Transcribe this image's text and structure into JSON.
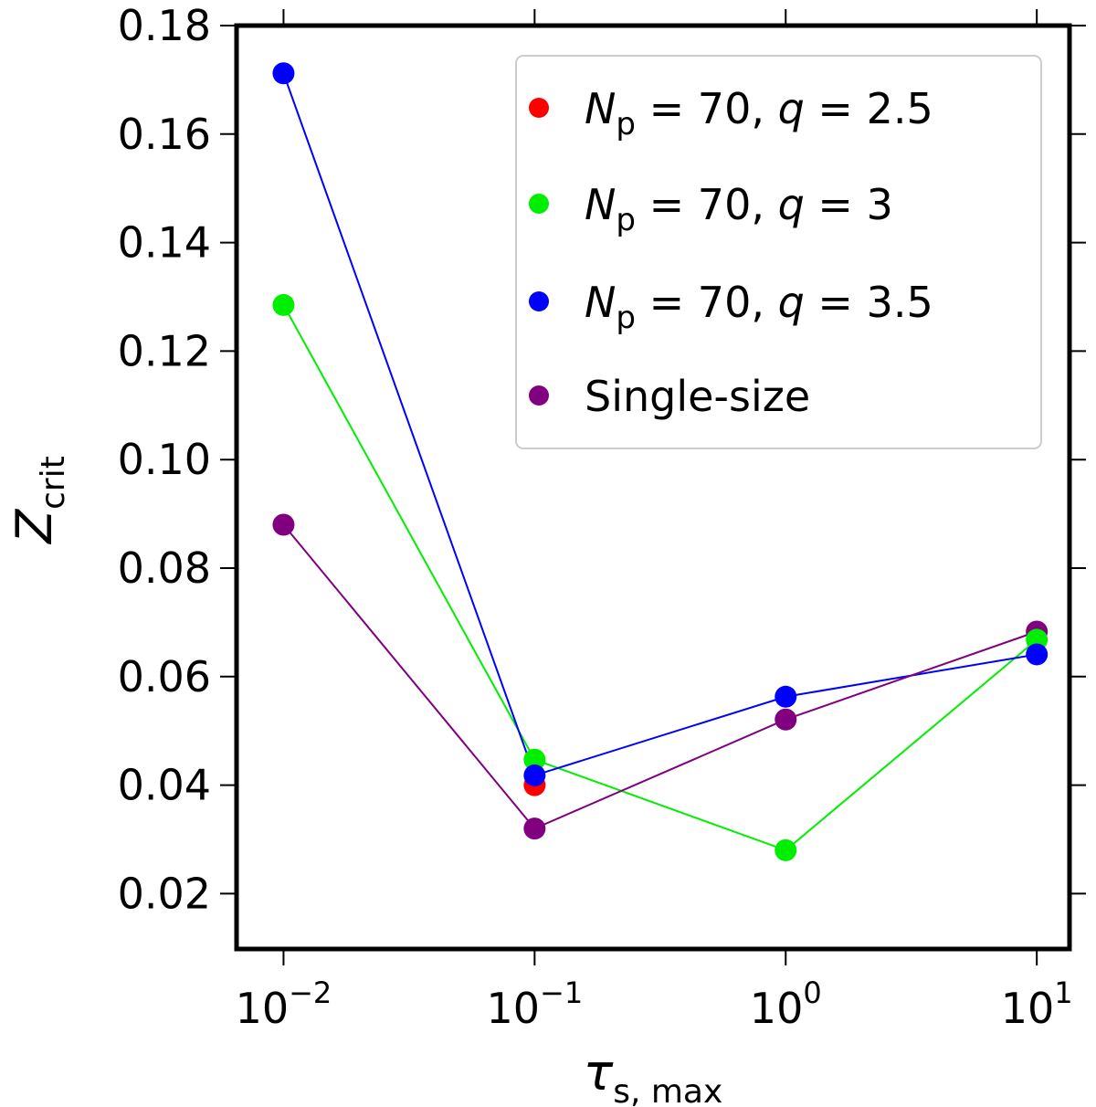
{
  "chart_data": {
    "type": "line",
    "title": "",
    "xscale": "log",
    "x": [
      0.01,
      0.1,
      1,
      10
    ],
    "xlim": [
      0.0065,
      13.5
    ],
    "ylim": [
      0.0098,
      0.18
    ],
    "xticks": [
      {
        "value": 0.01,
        "base": "10",
        "exp": "−2"
      },
      {
        "value": 0.1,
        "base": "10",
        "exp": "−1"
      },
      {
        "value": 1,
        "base": "10",
        "exp": "0"
      },
      {
        "value": 10,
        "base": "10",
        "exp": "1"
      }
    ],
    "yticks": [
      0.02,
      0.04,
      0.06,
      0.08,
      0.1,
      0.12,
      0.14,
      0.16,
      0.18
    ],
    "ytick_labels": [
      "0.02",
      "0.04",
      "0.06",
      "0.08",
      "0.10",
      "0.12",
      "0.14",
      "0.16",
      "0.18"
    ],
    "xlabel": {
      "symbol": "τ",
      "subscript": "s, max"
    },
    "ylabel": {
      "symbol": "Z",
      "subscript": "crit"
    },
    "legend_position": "upper-right",
    "series": [
      {
        "name": "N_p = 70, q = 2.5",
        "label_var": "N",
        "label_sub": "p",
        "label_rest": " = 70, ",
        "label_q": "q",
        "label_qval": " = 2.5",
        "color": "#ff0000",
        "x": [
          0.1
        ],
        "values": [
          0.04
        ],
        "line": false
      },
      {
        "name": "N_p = 70, q = 3",
        "label_var": "N",
        "label_sub": "p",
        "label_rest": " = 70, ",
        "label_q": "q",
        "label_qval": " = 3",
        "color": "#00ee00",
        "x": [
          0.01,
          0.1,
          1,
          10
        ],
        "values": [
          0.1285,
          0.0447,
          0.028,
          0.0668
        ],
        "line": true
      },
      {
        "name": "N_p = 70, q = 3.5",
        "label_var": "N",
        "label_sub": "p",
        "label_rest": " = 70, ",
        "label_q": "q",
        "label_qval": " = 3.5",
        "color": "#0000ff",
        "x": [
          0.01,
          0.1,
          1,
          10
        ],
        "values": [
          0.1712,
          0.0418,
          0.0563,
          0.0641
        ],
        "line": true
      },
      {
        "name": "Single-size",
        "label_plain": "Single-size",
        "color": "#800080",
        "x": [
          0.01,
          0.1,
          1,
          10
        ],
        "values": [
          0.088,
          0.032,
          0.0521,
          0.0683
        ],
        "line": true
      }
    ]
  }
}
